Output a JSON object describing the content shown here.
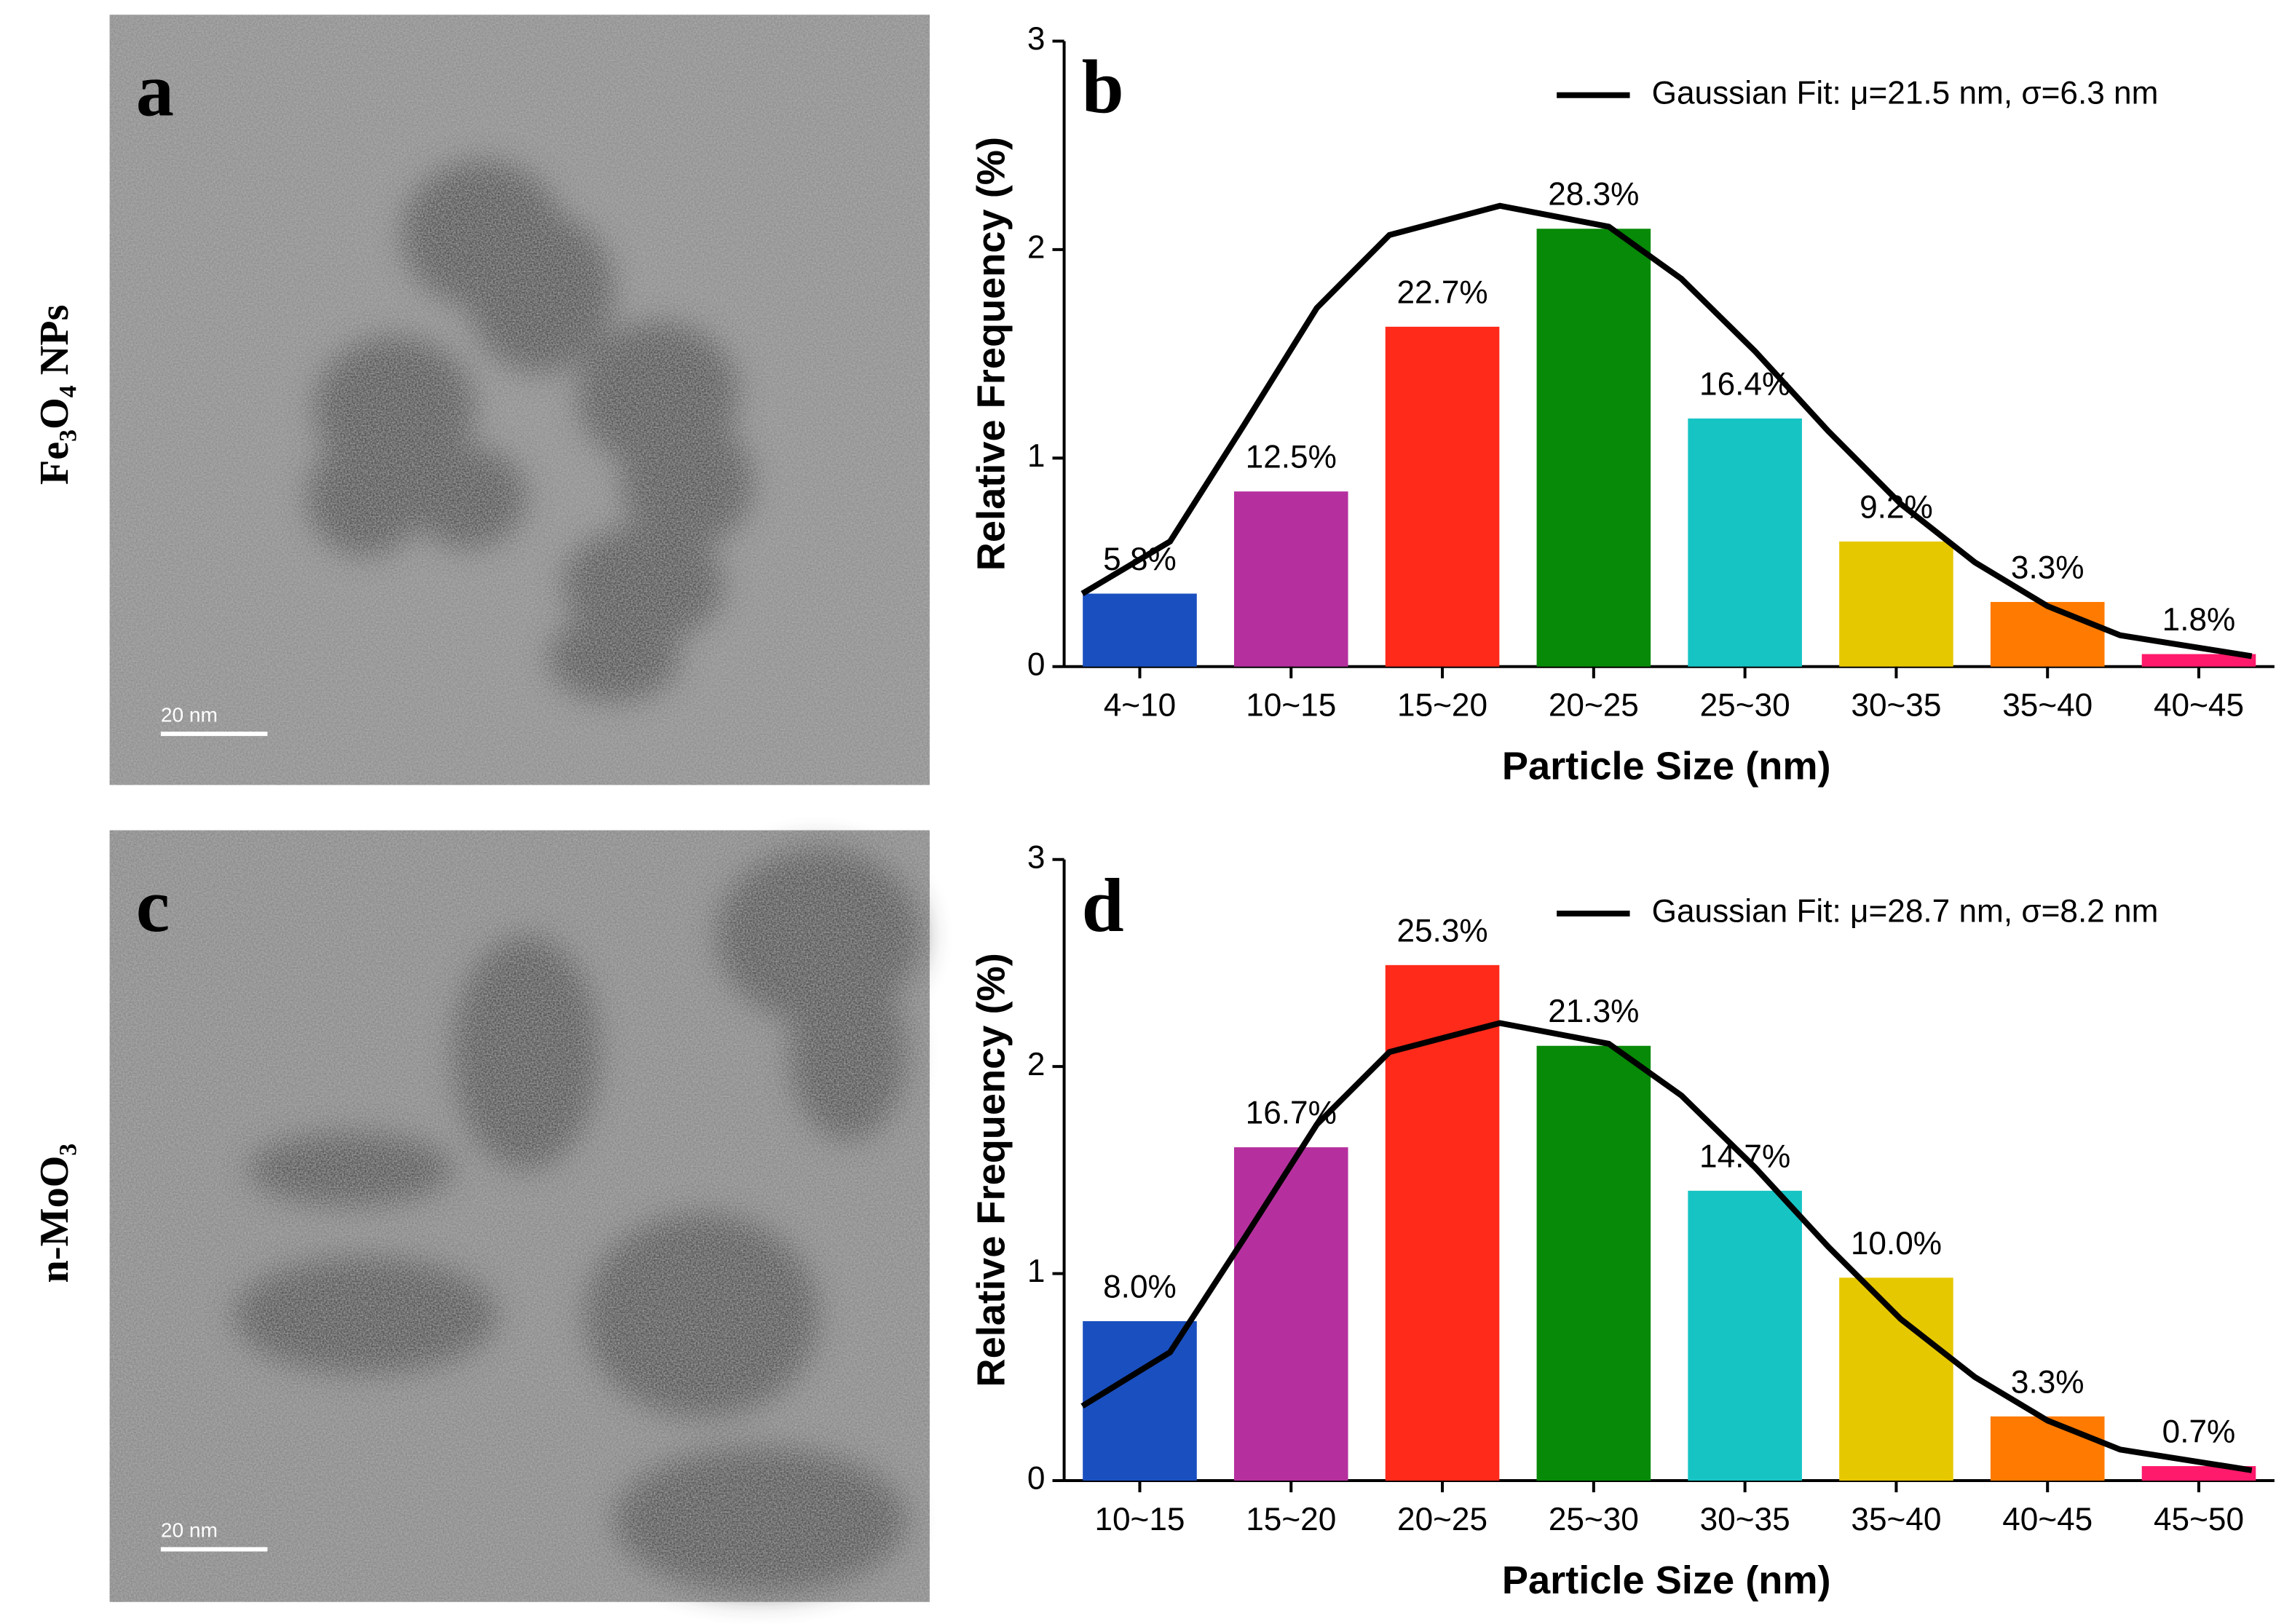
{
  "panels": [
    {
      "letter": "a",
      "sample": "Fe₃O₄ NPs",
      "scale_bar": "20 nm"
    },
    {
      "letter": "c",
      "sample": "n-MoO₃",
      "scale_bar": "20 nm"
    }
  ],
  "chart_data": [
    {
      "type": "bar",
      "panel": "b",
      "categories": [
        "4~10",
        "10~15",
        "15~20",
        "20~25",
        "25~30",
        "30~35",
        "35~40",
        "40~45"
      ],
      "values": [
        0.35,
        0.84,
        1.63,
        2.1,
        1.19,
        0.6,
        0.31,
        0.06
      ],
      "colors": [
        "#1a4fbf",
        "#b5309e",
        "#ff2a1a",
        "#078a07",
        "#17c4c4",
        "#e6c800",
        "#ff7a00",
        "#ff1a6b"
      ],
      "annotations": [
        "5.8%",
        "12.5%",
        "22.7%",
        "28.3%",
        "16.4%",
        "9.2%",
        "3.3%",
        "1.8%"
      ],
      "fit": {
        "name": "Gaussian Fit: μ=21.5 nm, σ=6.3 nm",
        "color": "#000000",
        "x": [
          -0.38,
          0.2,
          0.69,
          1.17,
          1.65,
          2.38,
          3.1,
          3.58,
          4.07,
          4.55,
          5.03,
          5.52,
          6.0,
          6.48,
          7.35
        ],
        "values": [
          0.35,
          0.6,
          1.16,
          1.72,
          2.07,
          2.21,
          2.11,
          1.86,
          1.51,
          1.13,
          0.78,
          0.5,
          0.29,
          0.15,
          0.05
        ]
      },
      "xlabel": "Particle Size (nm)",
      "ylabel": "Relative Frequency (%)",
      "ylim": [
        0,
        3
      ],
      "yticks": [
        0,
        1,
        2,
        3
      ]
    },
    {
      "type": "bar",
      "panel": "d",
      "categories": [
        "10~15",
        "15~20",
        "20~25",
        "25~30",
        "30~35",
        "35~40",
        "40~45",
        "45~50"
      ],
      "values": [
        0.77,
        1.61,
        2.49,
        2.1,
        1.4,
        0.98,
        0.31,
        0.07
      ],
      "colors": [
        "#1a4fbf",
        "#b5309e",
        "#ff2a1a",
        "#078a07",
        "#17c4c4",
        "#e6c800",
        "#ff7a00",
        "#ff1a6b"
      ],
      "annotations": [
        "8.0%",
        "16.7%",
        "25.3%",
        "21.3%",
        "14.7%",
        "10.0%",
        "3.3%",
        "0.7%"
      ],
      "fit": {
        "name": "Gaussian Fit: μ=28.7 nm, σ=8.2 nm",
        "color": "#000000",
        "x": [
          -0.38,
          0.2,
          0.69,
          1.17,
          1.65,
          2.38,
          3.1,
          3.58,
          4.07,
          4.55,
          5.03,
          5.52,
          6.0,
          6.48,
          7.35
        ],
        "values": [
          0.36,
          0.62,
          1.17,
          1.72,
          2.07,
          2.21,
          2.11,
          1.86,
          1.51,
          1.13,
          0.78,
          0.5,
          0.29,
          0.15,
          0.05
        ]
      },
      "xlabel": "Particle Size (nm)",
      "ylabel": "Relative Frequency (%)",
      "ylim": [
        0,
        3
      ],
      "yticks": [
        0,
        1,
        2,
        3
      ]
    }
  ]
}
